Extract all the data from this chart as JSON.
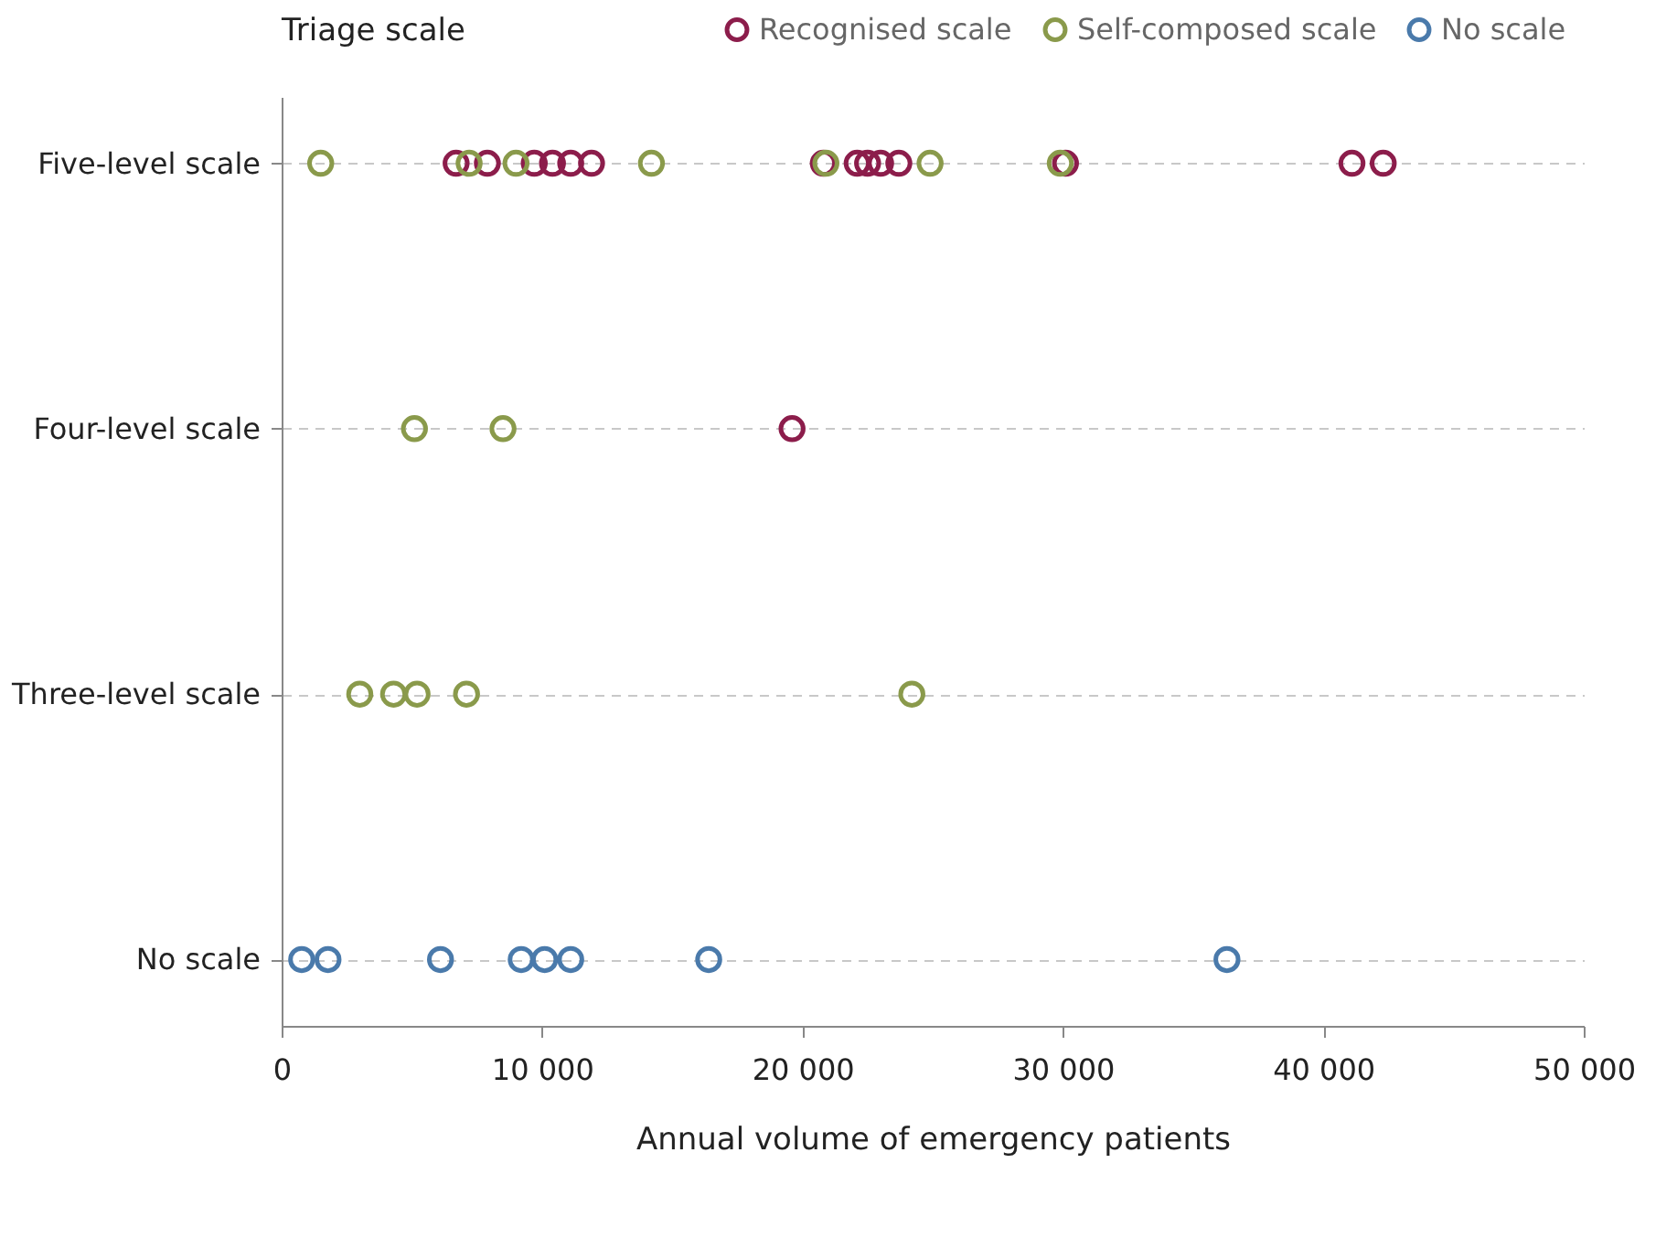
{
  "chart_data": {
    "type": "scatter",
    "orientation": "horizontal",
    "xlabel": "Annual volume of emergency patients",
    "legend_title": "Triage scale",
    "legend": "top",
    "marker": "circle",
    "grid": "y",
    "categories": [
      "Five-level scale",
      "Four-level scale",
      "Three-level scale",
      "No scale"
    ],
    "xlim": [
      0,
      50000
    ],
    "xticks": [
      {
        "value": 0,
        "label": "0"
      },
      {
        "value": 10000,
        "label": "10 000"
      },
      {
        "value": 20000,
        "label": "20 000"
      },
      {
        "value": 30000,
        "label": "30 000"
      },
      {
        "value": 40000,
        "label": "40 000"
      },
      {
        "value": 50000,
        "label": "50 000"
      }
    ],
    "series": [
      {
        "name": "Recognised scale",
        "color": "#8c1d4b",
        "values": [
          6700,
          19600,
          null,
          null
        ]
      },
      {
        "color": "#8c1d4b",
        "values": [
          7900,
          null,
          null,
          null
        ]
      },
      {
        "color": "#8c1d4b",
        "values": [
          9700,
          null,
          null,
          null
        ]
      },
      {
        "color": "#8c1d4b",
        "values": [
          10400,
          null,
          null,
          null
        ]
      },
      {
        "color": "#8c1d4b",
        "values": [
          11100,
          null,
          null,
          null
        ]
      },
      {
        "color": "#8c1d4b",
        "values": [
          11900,
          null,
          null,
          null
        ]
      },
      {
        "color": "#8c1d4b",
        "values": [
          20800,
          null,
          null,
          null
        ]
      },
      {
        "color": "#8c1d4b",
        "values": [
          22100,
          null,
          null,
          null
        ]
      },
      {
        "color": "#8c1d4b",
        "values": [
          22500,
          null,
          null,
          null
        ]
      },
      {
        "color": "#8c1d4b",
        "values": [
          23000,
          null,
          null,
          null
        ]
      },
      {
        "color": "#8c1d4b",
        "values": [
          23700,
          null,
          null,
          null
        ]
      },
      {
        "color": "#8c1d4b",
        "values": [
          30100,
          null,
          null,
          null
        ]
      },
      {
        "color": "#8c1d4b",
        "values": [
          41100,
          null,
          null,
          null
        ]
      },
      {
        "color": "#8c1d4b",
        "values": [
          42300,
          null,
          null,
          null
        ]
      },
      {
        "name": "Self-composed scale",
        "color": "#8a9a4b",
        "values": [
          1500,
          5100,
          3000,
          null
        ]
      },
      {
        "color": "#8a9a4b",
        "values": [
          7200,
          8500,
          4300,
          null
        ]
      },
      {
        "color": "#8a9a4b",
        "values": [
          9000,
          null,
          5200,
          null
        ]
      },
      {
        "color": "#8a9a4b",
        "values": [
          14200,
          null,
          7100,
          null
        ]
      },
      {
        "color": "#8a9a4b",
        "values": [
          20900,
          null,
          24200,
          null
        ]
      },
      {
        "color": "#8a9a4b",
        "values": [
          24900,
          null,
          null,
          null
        ]
      },
      {
        "color": "#8a9a4b",
        "values": [
          29900,
          null,
          null,
          null
        ]
      },
      {
        "name": "No scale",
        "color": "#4a7aab",
        "values": [
          null,
          null,
          null,
          770
        ]
      },
      {
        "color": "#4a7aab",
        "values": [
          null,
          null,
          null,
          1780
        ]
      },
      {
        "color": "#4a7aab",
        "values": [
          null,
          null,
          null,
          6100
        ]
      },
      {
        "color": "#4a7aab",
        "values": [
          null,
          null,
          null,
          9200
        ]
      },
      {
        "color": "#4a7aab",
        "values": [
          null,
          null,
          null,
          10100
        ]
      },
      {
        "color": "#4a7aab",
        "values": [
          null,
          null,
          null,
          11100
        ]
      },
      {
        "color": "#4a7aab",
        "values": [
          null,
          null,
          null,
          16400
        ]
      },
      {
        "color": "#4a7aab",
        "values": [
          null,
          null,
          null,
          36300
        ]
      }
    ]
  }
}
